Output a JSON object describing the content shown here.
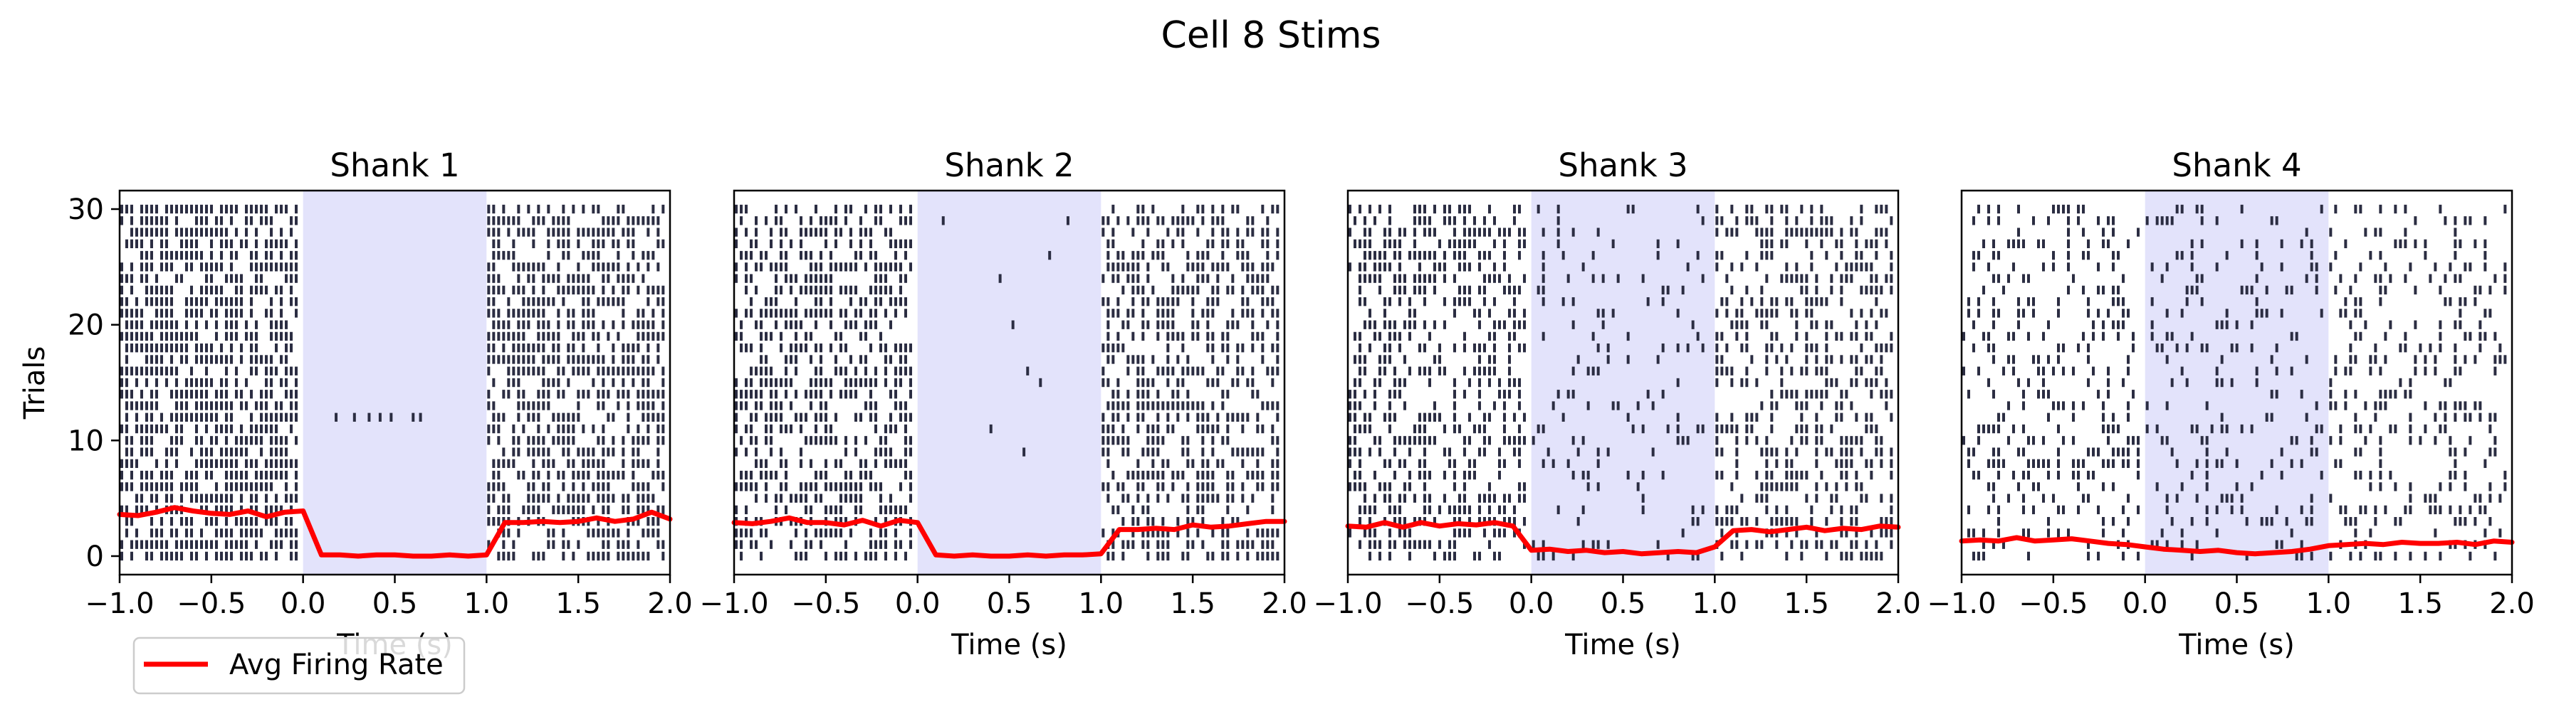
{
  "figure": {
    "suptitle": "Cell 8 Stims"
  },
  "legend": {
    "label": "Avg Firing Rate",
    "color": "#ff0000",
    "placement": "lower-left"
  },
  "colors": {
    "spike": "#2b2d42",
    "stim_shade": "#e3e3fb",
    "rate_line": "#ff0000"
  },
  "chart_data": [
    {
      "type": "raster",
      "title": "Shank 1",
      "xlabel": "Time (s)",
      "ylabel": "Trials",
      "xlim": [
        -1.0,
        2.0
      ],
      "ylim": [
        -1.6,
        31.6
      ],
      "xticks": [
        "−1.0",
        "−0.5",
        "0.0",
        "0.5",
        "1.0",
        "1.5",
        "2.0"
      ],
      "yticks": [
        "0",
        "10",
        "20",
        "30"
      ],
      "stim_window": [
        0.0,
        1.0
      ],
      "n_trials": 31,
      "pre_rate": 0.68,
      "stim_rate": 0.0,
      "post_rate": 0.62,
      "avg_firing_rate": {
        "x": [
          -1.0,
          -0.9,
          -0.8,
          -0.7,
          -0.6,
          -0.5,
          -0.4,
          -0.3,
          -0.2,
          -0.1,
          0.0,
          0.1,
          0.2,
          0.3,
          0.4,
          0.5,
          0.6,
          0.7,
          0.8,
          0.9,
          1.0,
          1.1,
          1.2,
          1.3,
          1.4,
          1.5,
          1.6,
          1.7,
          1.8,
          1.9,
          2.0
        ],
        "y": [
          3.6,
          3.5,
          3.8,
          4.2,
          3.9,
          3.7,
          3.6,
          3.9,
          3.4,
          3.8,
          3.9,
          0.1,
          0.1,
          0.0,
          0.1,
          0.1,
          0.0,
          0.0,
          0.1,
          0.0,
          0.1,
          2.9,
          2.9,
          3.0,
          2.9,
          3.0,
          3.3,
          3.0,
          3.2,
          3.8,
          3.2
        ]
      },
      "isolated_spikes": [
        {
          "trial": 12,
          "times": [
            0.18,
            0.28,
            0.36,
            0.42,
            0.48,
            0.6,
            0.64
          ]
        }
      ]
    },
    {
      "type": "raster",
      "title": "Shank 2",
      "xlabel": "Time (s)",
      "ylabel": "",
      "xlim": [
        -1.0,
        2.0
      ],
      "ylim": [
        -1.6,
        31.6
      ],
      "xticks": [
        "−1.0",
        "−0.5",
        "0.0",
        "0.5",
        "1.0",
        "1.5",
        "2.0"
      ],
      "yticks": [],
      "stim_window": [
        0.0,
        1.0
      ],
      "n_trials": 31,
      "pre_rate": 0.55,
      "stim_rate": 0.0,
      "post_rate": 0.5,
      "avg_firing_rate": {
        "x": [
          -1.0,
          -0.9,
          -0.8,
          -0.7,
          -0.6,
          -0.5,
          -0.4,
          -0.3,
          -0.2,
          -0.1,
          0.0,
          0.1,
          0.2,
          0.3,
          0.4,
          0.5,
          0.6,
          0.7,
          0.8,
          0.9,
          1.0,
          1.1,
          1.2,
          1.3,
          1.4,
          1.5,
          1.6,
          1.7,
          1.8,
          1.9,
          2.0
        ],
        "y": [
          2.9,
          2.8,
          3.0,
          3.3,
          2.9,
          2.9,
          2.7,
          3.1,
          2.6,
          3.1,
          2.9,
          0.1,
          0.0,
          0.1,
          0.0,
          0.0,
          0.1,
          0.0,
          0.1,
          0.1,
          0.2,
          2.3,
          2.3,
          2.4,
          2.3,
          2.7,
          2.5,
          2.6,
          2.8,
          3.0,
          3.0
        ]
      },
      "isolated_spikes": [
        {
          "trial": 29,
          "times": [
            0.14,
            0.82
          ]
        },
        {
          "trial": 26,
          "times": [
            0.72
          ]
        },
        {
          "trial": 24,
          "times": [
            0.45
          ]
        },
        {
          "trial": 20,
          "times": [
            0.52
          ]
        },
        {
          "trial": 16,
          "times": [
            0.6
          ]
        },
        {
          "trial": 15,
          "times": [
            0.67
          ]
        },
        {
          "trial": 11,
          "times": [
            0.4
          ]
        },
        {
          "trial": 9,
          "times": [
            0.58
          ]
        }
      ]
    },
    {
      "type": "raster",
      "title": "Shank 3",
      "xlabel": "Time (s)",
      "ylabel": "",
      "xlim": [
        -1.0,
        2.0
      ],
      "ylim": [
        -1.6,
        31.6
      ],
      "xticks": [
        "−1.0",
        "−0.5",
        "0.0",
        "0.5",
        "1.0",
        "1.5",
        "2.0"
      ],
      "yticks": [],
      "stim_window": [
        0.0,
        1.0
      ],
      "n_trials": 31,
      "pre_rate": 0.5,
      "stim_rate": 0.12,
      "post_rate": 0.42,
      "avg_firing_rate": {
        "x": [
          -1.0,
          -0.9,
          -0.8,
          -0.7,
          -0.6,
          -0.5,
          -0.4,
          -0.3,
          -0.2,
          -0.1,
          0.0,
          0.1,
          0.2,
          0.3,
          0.4,
          0.5,
          0.6,
          0.7,
          0.8,
          0.9,
          1.0,
          1.1,
          1.2,
          1.3,
          1.4,
          1.5,
          1.6,
          1.7,
          1.8,
          1.9,
          2.0
        ],
        "y": [
          2.6,
          2.5,
          2.9,
          2.5,
          2.9,
          2.6,
          2.8,
          2.7,
          2.9,
          2.6,
          0.5,
          0.6,
          0.4,
          0.5,
          0.3,
          0.4,
          0.2,
          0.3,
          0.4,
          0.3,
          0.8,
          2.2,
          2.3,
          2.1,
          2.3,
          2.5,
          2.2,
          2.4,
          2.3,
          2.6,
          2.5
        ]
      },
      "isolated_spikes": []
    },
    {
      "type": "raster",
      "title": "Shank 4",
      "xlabel": "Time (s)",
      "ylabel": "",
      "xlim": [
        -1.0,
        2.0
      ],
      "ylim": [
        -1.6,
        31.6
      ],
      "xticks": [
        "−1.0",
        "−0.5",
        "0.0",
        "0.5",
        "1.0",
        "1.5",
        "2.0"
      ],
      "yticks": [],
      "stim_window": [
        0.0,
        1.0
      ],
      "n_trials": 31,
      "pre_rate": 0.3,
      "stim_rate": 0.18,
      "post_rate": 0.28,
      "avg_firing_rate": {
        "x": [
          -1.0,
          -0.9,
          -0.8,
          -0.7,
          -0.6,
          -0.5,
          -0.4,
          -0.3,
          -0.2,
          -0.1,
          0.0,
          0.1,
          0.2,
          0.3,
          0.4,
          0.5,
          0.6,
          0.7,
          0.8,
          0.9,
          1.0,
          1.1,
          1.2,
          1.3,
          1.4,
          1.5,
          1.6,
          1.7,
          1.8,
          1.9,
          2.0
        ],
        "y": [
          1.3,
          1.4,
          1.3,
          1.6,
          1.3,
          1.4,
          1.5,
          1.3,
          1.1,
          1.0,
          0.8,
          0.6,
          0.5,
          0.4,
          0.5,
          0.3,
          0.2,
          0.3,
          0.4,
          0.6,
          0.9,
          1.0,
          1.1,
          1.0,
          1.2,
          1.1,
          1.1,
          1.2,
          1.0,
          1.3,
          1.2
        ]
      },
      "isolated_spikes": []
    }
  ]
}
